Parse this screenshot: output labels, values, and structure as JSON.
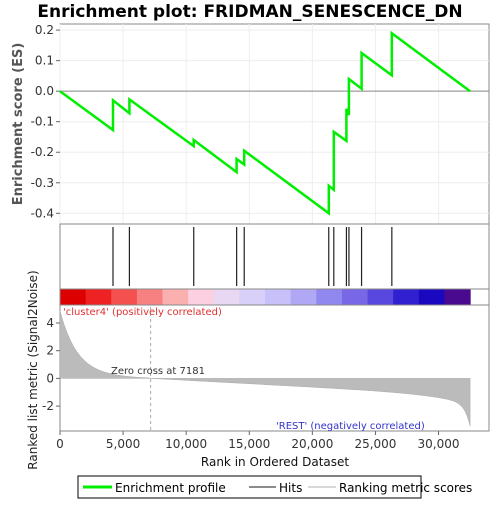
{
  "chart_data": {
    "type": "line",
    "title": "Enrichment plot: FRIDMAN_SENESCENCE_DN",
    "es_ylabel": "Enrichment score (ES)",
    "rank_ylabel": "Ranked list metric (Signal2Noise)",
    "xlabel": "Rank in Ordered Dataset",
    "x_range": [
      0,
      34000
    ],
    "dataset_size": 32500,
    "es_ylim": [
      -0.435,
      0.22
    ],
    "es_ticks": [
      0.2,
      0.1,
      0.0,
      -0.1,
      -0.2,
      -0.3,
      -0.4
    ],
    "es_tick_labels": [
      "0.2",
      "0.1",
      "0.0",
      "-0.1",
      "-0.2",
      "-0.3",
      "-0.4"
    ],
    "x_ticks": [
      0,
      5000,
      10000,
      15000,
      20000,
      25000,
      30000
    ],
    "x_tick_labels": [
      "0",
      "5,000",
      "10,000",
      "15,000",
      "20,000",
      "25,000",
      "30,000"
    ],
    "rank_ylim": [
      -3.8,
      5.3
    ],
    "rank_ticks": [
      4,
      2,
      0,
      -2
    ],
    "rank_tick_labels": [
      "4",
      "2",
      "0",
      "-2"
    ],
    "hits": [
      4200,
      5500,
      10600,
      14000,
      14600,
      21300,
      21700,
      22700,
      22900,
      23900,
      26300
    ],
    "series": [
      {
        "name": "Enrichment profile",
        "color": "#00ee00",
        "x": [
          0,
          4200,
          4200,
          5500,
          5500,
          10600,
          10600,
          14000,
          14000,
          14600,
          14600,
          21300,
          21300,
          21700,
          21700,
          21700,
          22700,
          22700,
          22900,
          22900,
          23900,
          23900,
          26300,
          26300,
          32500
        ],
        "y": [
          0.0,
          -0.127,
          -0.03,
          -0.072,
          -0.027,
          -0.18,
          -0.16,
          -0.265,
          -0.222,
          -0.24,
          -0.195,
          -0.4,
          -0.31,
          -0.323,
          -0.228,
          -0.133,
          -0.163,
          -0.058,
          -0.078,
          0.04,
          0.008,
          0.125,
          0.052,
          0.19,
          0.0
        ]
      }
    ],
    "zero_cross": 7181,
    "zero_cross_label": "Zero cross at 7181",
    "positive_label": "'cluster4' (positively correlated)",
    "negative_label": "'REST' (negatively correlated)",
    "legend": [
      "Enrichment profile",
      "Hits",
      "Ranking metric scores"
    ],
    "legend_placement": "bottom",
    "colorbar_colors": [
      "#dd0000",
      "#ee2222",
      "#f45050",
      "#f78080",
      "#fbb0b0",
      "#fcd0e0",
      "#e8d8f4",
      "#d8d0f8",
      "#c8c0f8",
      "#b0a8f4",
      "#9088ee",
      "#7868e8",
      "#5848e0",
      "#3020d0",
      "#1a08c0",
      "#4a0a90"
    ]
  }
}
